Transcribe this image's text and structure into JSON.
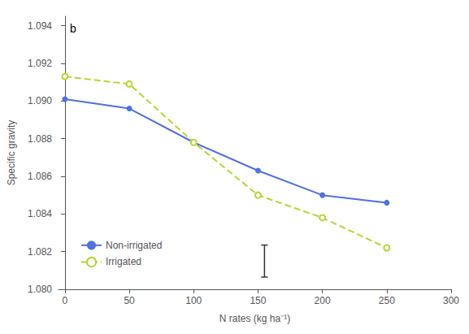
{
  "chart_data": {
    "type": "line",
    "annotations": [
      "b"
    ],
    "xlabel": "N rates (kg ha⁻¹)",
    "ylabel": "Specific gravity",
    "xlim": [
      -5,
      300
    ],
    "ylim": [
      1.08,
      1.0945
    ],
    "xticks": [
      0,
      50,
      100,
      150,
      200,
      250,
      300
    ],
    "yticks": [
      {
        "value": 1.08,
        "label": "1.080"
      },
      1.082,
      1.084,
      1.086,
      1.088,
      {
        "value": 1.09,
        "label": "1.090"
      },
      1.092,
      1.094
    ],
    "series": [
      {
        "name": "Non-irrigated",
        "x": [
          0,
          50,
          100,
          150,
          200,
          250
        ],
        "values": [
          1.0901,
          1.0896,
          1.0878,
          1.0863,
          1.085,
          1.0846
        ],
        "line_style": "solid",
        "marker": "circle"
      },
      {
        "name": "Irrigated",
        "x": [
          0,
          50,
          100,
          150,
          200,
          250
        ],
        "values": [
          1.0913,
          1.0909,
          1.0878,
          1.085,
          1.0838,
          1.0822
        ],
        "line_style": "dashed",
        "marker": "emptyCircle"
      }
    ],
    "error_bars": [
      {
        "x": 155,
        "y": 1.0815,
        "error": 0.00085
      }
    ],
    "legend": "lower left",
    "grid": false
  }
}
